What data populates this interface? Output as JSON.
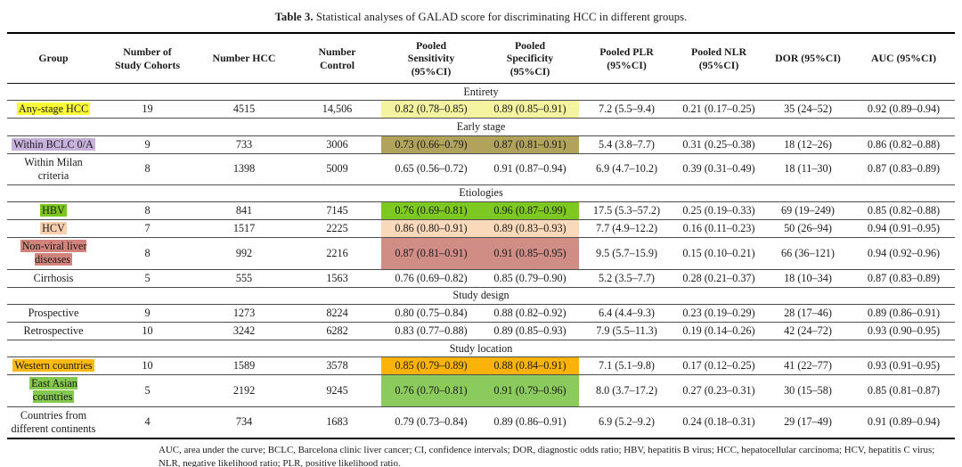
{
  "title": {
    "label": "Table 3.",
    "text": " Statistical analyses of GALAD score for discriminating HCC in different groups."
  },
  "table": {
    "columns": [
      {
        "id": "group",
        "label": "Group"
      },
      {
        "id": "study-cohorts",
        "label": "Number of\nStudy Cohorts"
      },
      {
        "id": "number-hcc",
        "label": "Number HCC"
      },
      {
        "id": "number-control",
        "label": "Number\nControl"
      },
      {
        "id": "pooled-sensitivity",
        "label": "Pooled\nSensitivity\n(95%CI)"
      },
      {
        "id": "pooled-specificity",
        "label": "Pooled\nSpecificity\n(95%CI)"
      },
      {
        "id": "pooled-plr",
        "label": "Pooled PLR\n(95%CI)"
      },
      {
        "id": "pooled-nlr",
        "label": "Pooled NLR\n(95%CI)"
      },
      {
        "id": "dor",
        "label": "DOR (95%CI)"
      },
      {
        "id": "auc",
        "label": "AUC (95%CI)"
      }
    ],
    "sections": [
      {
        "name": "Entirety",
        "rows": [
          {
            "group": "Any-stage HCC",
            "group_highlight": "#fbfb38",
            "cells_highlight": "#f3f3a0",
            "cells": [
              "19",
              "4515",
              "14,506",
              "0.82 (0.78–0.85)",
              "0.89 (0.85–0.91)",
              "7.2 (5.5–9.4)",
              "0.21 (0.17–0.25)",
              "35 (24–52)",
              "0.92 (0.89–0.94)"
            ]
          }
        ]
      },
      {
        "name": "Early stage",
        "rows": [
          {
            "group": "Within BCLC 0/A",
            "group_highlight": "#c9b1de",
            "cells_highlight": "#b2a35c",
            "cells": [
              "9",
              "733",
              "3006",
              "0.73 (0.66–0.79)",
              "0.87 (0.81–0.91)",
              "5.4 (3.8–7.7)",
              "0.31 (0.25–0.38)",
              "18 (12–26)",
              "0.86 (0.82–0.88)"
            ]
          },
          {
            "group": "Within Milan criteria",
            "group_highlight": null,
            "cells_highlight": null,
            "cells": [
              "8",
              "1398",
              "5009",
              "0.65 (0.56–0.72)",
              "0.91 (0.87–0.94)",
              "6.9 (4.7–10.2)",
              "0.39 (0.31–0.49)",
              "18 (11–30)",
              "0.87 (0.83–0.89)"
            ]
          }
        ]
      },
      {
        "name": "Etiologies",
        "rows": [
          {
            "group": "HBV",
            "group_highlight": "#7cc71e",
            "cells_highlight": "#7ec822",
            "cells": [
              "8",
              "841",
              "7145",
              "0.76 (0.69–0.81)",
              "0.96 (0.87–0.99)",
              "17.5 (5.3–57.2)",
              "0.25 (0.19–0.33)",
              "69 (19–249)",
              "0.85 (0.82–0.88)"
            ]
          },
          {
            "group": "HCV",
            "group_highlight": "#f8d0ae",
            "cells_highlight": "#fad9ba",
            "cells": [
              "7",
              "1517",
              "2225",
              "0.86 (0.80–0.91)",
              "0.89 (0.83–0.93)",
              "7.7 (4.9–12.2)",
              "0.16 (0.11–0.23)",
              "50 (26–94)",
              "0.94 (0.91–0.95)"
            ]
          },
          {
            "group": "Non-viral liver diseases",
            "group_highlight": "#d2847c",
            "cells_highlight": "#cf8d86",
            "cells": [
              "8",
              "992",
              "2216",
              "0.87 (0.81–0.91)",
              "0.91 (0.85–0.95)",
              "9.5 (5.7–15.9)",
              "0.15 (0.10–0.21)",
              "66 (36–121)",
              "0.94 (0.92–0.96)"
            ]
          },
          {
            "group": "Cirrhosis",
            "group_highlight": null,
            "cells_highlight": null,
            "cells": [
              "5",
              "555",
              "1563",
              "0.76 (0.69–0.82)",
              "0.85 (0.79–0.90)",
              "5.2 (3.5–7.7)",
              "0.28 (0.21–0.37)",
              "18 (10–34)",
              "0.87 (0.83–0.89)"
            ]
          }
        ]
      },
      {
        "name": "Study design",
        "rows": [
          {
            "group": "Prospective",
            "group_highlight": null,
            "cells_highlight": null,
            "cells": [
              "9",
              "1273",
              "8224",
              "0.80 (0.75–0.84)",
              "0.88 (0.82–0.92)",
              "6.4 (4.4–9.3)",
              "0.23 (0.19–0.29)",
              "28 (17–46)",
              "0.89 (0.86–0.91)"
            ]
          },
          {
            "group": "Retrospective",
            "group_highlight": null,
            "cells_highlight": null,
            "cells": [
              "10",
              "3242",
              "6282",
              "0.83 (0.77–0.88)",
              "0.89 (0.85–0.93)",
              "7.9 (5.5–11.3)",
              "0.19 (0.14–0.26)",
              "42 (24–72)",
              "0.93 (0.90–0.95)"
            ]
          }
        ]
      },
      {
        "name": "Study location",
        "rows": [
          {
            "group": "Western countries",
            "group_highlight": "#fcba12",
            "cells_highlight": "#fbb309",
            "cells": [
              "10",
              "1589",
              "3578",
              "0.85 (0.79–0.89)",
              "0.88 (0.84–0.91)",
              "7.1 (5.1–9.8)",
              "0.17 (0.12–0.25)",
              "41 (22–77)",
              "0.93 (0.91–0.95)"
            ]
          },
          {
            "group": "East Asian countries",
            "group_highlight": "#84c94d",
            "cells_highlight": "#8bcb5d",
            "cells": [
              "5",
              "2192",
              "9245",
              "0.76 (0.70–0.81)",
              "0.91 (0.79–0.96)",
              "8.0 (3.7–17.2)",
              "0.27 (0.23–0.31)",
              "30 (15–58)",
              "0.85 (0.81–0.87)"
            ]
          },
          {
            "group": "Countries from different continents",
            "group_highlight": null,
            "cells_highlight": null,
            "cells": [
              "4",
              "734",
              "1683",
              "0.79 (0.73–0.84)",
              "0.89 (0.86–0.91)",
              "6.9 (5.2–9.2)",
              "0.24 (0.18–0.31)",
              "29 (17–49)",
              "0.91 (0.89–0.94)"
            ]
          }
        ]
      }
    ]
  },
  "footnote": "AUC, area under the curve; BCLC, Barcelona clinic liver cancer; CI, confidence intervals; DOR, diagnostic odds ratio; HBV, hepatitis B virus; HCC, hepatocellular carcinoma; HCV, hepatitis C virus; NLR, negative likelihood ratio; PLR, positive likelihood ratio."
}
